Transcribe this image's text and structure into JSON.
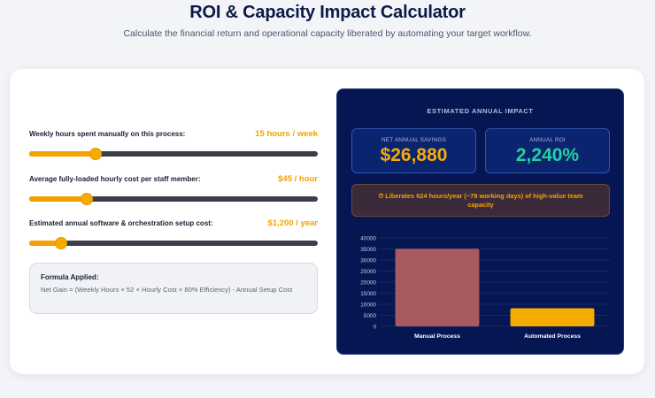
{
  "header": {
    "title": "ROI & Capacity Impact Calculator",
    "subtitle": "Calculate the financial return and operational capacity liberated by automating your target workflow."
  },
  "inputs": [
    {
      "label": "Weekly hours spent manually on this process:",
      "value_text": "15 hours / week",
      "fraction": 0.23
    },
    {
      "label": "Average fully-loaded hourly cost per staff member:",
      "value_text": "$45 / hour",
      "fraction": 0.2
    },
    {
      "label": "Estimated annual software & orchestration setup cost:",
      "value_text": "$1,200 / year",
      "fraction": 0.11
    }
  ],
  "formula": {
    "title": "Formula Applied:",
    "text": "Net Gain = (Weekly Hours × 52 × Hourly Cost × 80% Efficiency) - Annual Setup Cost"
  },
  "impact": {
    "heading": "ESTIMATED ANNUAL IMPACT",
    "savings": {
      "label": "NET ANNUAL SAVINGS",
      "value": "$26,880",
      "color": "#f5ab00"
    },
    "roi": {
      "label": "ANNUAL ROI",
      "value": "2,240%",
      "color": "#22d39a"
    },
    "note": "⏱ Liberates 624 hours/year (~78 working days) of high-value team capacity"
  },
  "colors": {
    "accent": "#f2a200",
    "panel": "#061652",
    "manual_bar": "#a85a61",
    "auto_bar": "#f5ab00"
  },
  "chart_data": {
    "type": "bar",
    "categories": [
      "Manual Process",
      "Automated Process"
    ],
    "values": [
      35100,
      8220
    ],
    "colors": [
      "#a85a61",
      "#f5ab00"
    ],
    "yticks": [
      "0",
      "5000",
      "10000",
      "15000",
      "20000",
      "25000",
      "30000",
      "35000",
      "40000"
    ],
    "ylim": [
      0,
      40000
    ],
    "grid": true
  }
}
